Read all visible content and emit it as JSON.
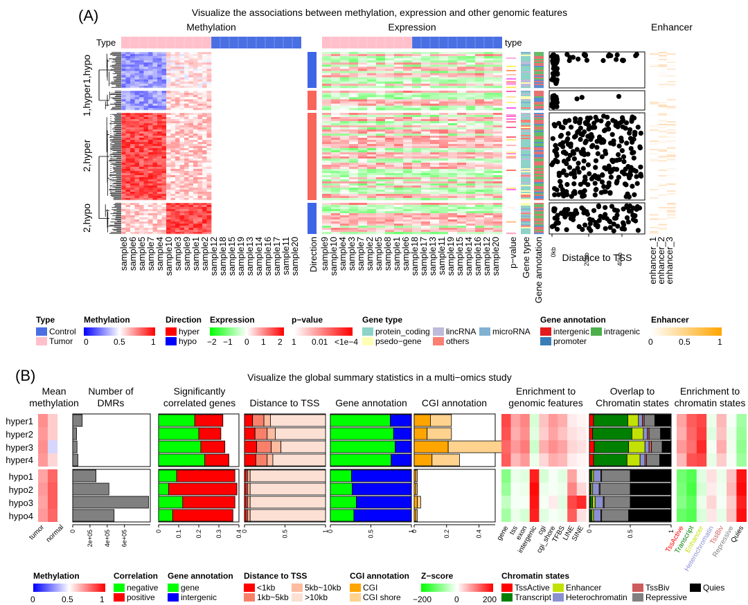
{
  "panelA": {
    "label": "(A)",
    "title": "Visualize the associations between methylation, expression and other genomic features",
    "block_titles": {
      "methylation": "Methylation",
      "expression": "Expression",
      "enhancer": "Enhancer"
    },
    "type_label": "Type",
    "type_label2": "type",
    "row_groups": [
      "1,hypo",
      "1,hyper",
      "2,hyper",
      "2,hypo"
    ],
    "methylation_samples": [
      "sample8",
      "sample6",
      "sample5",
      "sample7",
      "sample4",
      "sample10",
      "sample3",
      "sample9",
      "sample1",
      "sample2",
      "sample12",
      "sample18",
      "sample15",
      "sample19",
      "sample13",
      "sample14",
      "sample16",
      "sample17",
      "sample11",
      "sample20"
    ],
    "expression_samples": [
      "sample9",
      "sample10",
      "sample4",
      "sample3",
      "sample7",
      "sample2",
      "sample5",
      "sample8",
      "sample1",
      "sample6",
      "sample18",
      "sample17",
      "sample13",
      "sample11",
      "sample19",
      "sample15",
      "sample14",
      "sample16",
      "sample12",
      "sample20"
    ],
    "annotation_columns": {
      "direction": "Direction",
      "pvalue": "p−value",
      "gene_type": "Gene type",
      "gene_annotation": "Gene annotation"
    },
    "scatter": {
      "xlabel": "Distance to TSS",
      "ticks": [
        "0kb",
        "20kb",
        "40kb"
      ]
    },
    "enhancer_columns": [
      "enhancer_1",
      "enhancer_2",
      "enhancer_3"
    ],
    "legends": {
      "type": {
        "title": "Type",
        "items": [
          {
            "label": "Control",
            "color": "#4a6fe3"
          },
          {
            "label": "Tumor",
            "color": "#ffc0cb"
          }
        ]
      },
      "methylation": {
        "title": "Methylation",
        "ticks": [
          "0",
          "0.5",
          "1"
        ]
      },
      "direction": {
        "title": "Direction",
        "items": [
          {
            "label": "hyper",
            "color": "#ff0000"
          },
          {
            "label": "hypo",
            "color": "#0000ff"
          }
        ]
      },
      "expression": {
        "title": "Expression",
        "ticks": [
          "−2",
          "−1",
          "0",
          "1",
          "2"
        ]
      },
      "pvalue": {
        "title": "p−value",
        "ticks": [
          "1",
          "0.01",
          "<1e−4"
        ]
      },
      "gene_type": {
        "title": "Gene type",
        "items": [
          {
            "label": "protein_coding",
            "color": "#8dd3c7"
          },
          {
            "label": "lincRNA",
            "color": "#bebada"
          },
          {
            "label": "microRNA",
            "color": "#80b1d3"
          },
          {
            "label": "psedo−gene",
            "color": "#ffffb3"
          },
          {
            "label": "others",
            "color": "#fb8072"
          }
        ]
      },
      "gene_annotation": {
        "title": "Gene annotation",
        "items": [
          {
            "label": "intergenic",
            "color": "#e41a1c"
          },
          {
            "label": "intragenic",
            "color": "#4daf4a"
          },
          {
            "label": "promoter",
            "color": "#377eb8"
          }
        ]
      },
      "enhancer": {
        "title": "Enhancer",
        "ticks": [
          "0",
          "0.5",
          "1"
        ]
      }
    }
  },
  "panelB": {
    "label": "(B)",
    "title": "Visualize the global summary statistics in a multi−omics study",
    "rows": [
      "hyper1",
      "hyper2",
      "hyper3",
      "hyper4",
      "hypo1",
      "hypo2",
      "hypo3",
      "hypo4"
    ],
    "column_titles": {
      "mean_meth": [
        "Mean",
        "methylation"
      ],
      "dmrs": [
        "Number of",
        "DMRs"
      ],
      "corr": [
        "Significantly",
        "correlated genes"
      ],
      "tss": [
        "Distance to TSS"
      ],
      "gene_annot": [
        "Gene annotation"
      ],
      "cgi": [
        "CGI annotation"
      ],
      "enrich_feat": [
        "Enrichment to",
        "genomic features"
      ],
      "overlap": [
        "Overlap to",
        "Chromatin states"
      ],
      "enrich_chrom": [
        "Enrichment to",
        "chromatin states"
      ]
    },
    "mean_meth_labels": [
      "tumor",
      "normal"
    ],
    "axis_ticks": {
      "dmrs": [
        "0",
        "2e+05",
        "4e+05",
        "6e+05"
      ],
      "corr": [
        "0",
        "0.1",
        "0.2",
        "0.3",
        "0.4"
      ],
      "tss": [
        "0",
        "0.5",
        "1"
      ],
      "gene_annot": [
        "0",
        "0.5",
        "1"
      ],
      "cgi": [
        "0",
        "0.2",
        "0.4"
      ],
      "overlap": [
        "0",
        "0.5",
        "1"
      ]
    },
    "feature_labels": [
      "gene",
      "tss",
      "exon",
      "intergenic",
      "cgi",
      "cgi_shore",
      "TFBS",
      "LINE",
      "SINE"
    ],
    "state_labels": [
      {
        "label": "TssActive",
        "color": "#ff0000"
      },
      {
        "label": "Transcript",
        "color": "#008000"
      },
      {
        "label": "Enhancer",
        "color": "#c2e105"
      },
      {
        "label": "Heterochromatin",
        "color": "#8a91d0"
      },
      {
        "label": "TssBiv",
        "color": "#cd5c5c"
      },
      {
        "label": "Repressive",
        "color": "#808080"
      },
      {
        "label": "Quies",
        "color": "#000000"
      }
    ],
    "legends": {
      "methylation": {
        "title": "Methylation",
        "ticks": [
          "0",
          "0.5",
          "1"
        ]
      },
      "correlation": {
        "title": "Correlation",
        "items": [
          {
            "label": "negative",
            "color": "#00ff00"
          },
          {
            "label": "positive",
            "color": "#ff0000"
          }
        ]
      },
      "gene_annotation": {
        "title": "Gene annotation",
        "items": [
          {
            "label": "gene",
            "color": "#00ff00"
          },
          {
            "label": "intergenic",
            "color": "#0000ff"
          }
        ]
      },
      "tss": {
        "title": "Distance to TSS",
        "items": [
          {
            "label": "<1kb",
            "color": "#ff0000"
          },
          {
            "label": "5kb~10kb",
            "color": "#fdbba0"
          },
          {
            "label": "1kb~5kb",
            "color": "#f8806b"
          },
          {
            "label": ">10kb",
            "color": "#fde0d4"
          }
        ]
      },
      "cgi": {
        "title": "CGI annotation",
        "items": [
          {
            "label": "CGI",
            "color": "#ffa500"
          },
          {
            "label": "CGI shore",
            "color": "#ffd28e"
          }
        ]
      },
      "zscore": {
        "title": "Z−score",
        "ticks": [
          "−200",
          "0",
          "200"
        ]
      },
      "chromatin": {
        "title": "Chromatin states",
        "items": [
          {
            "label": "TssActive",
            "color": "#ff0000"
          },
          {
            "label": "Enhancer",
            "color": "#c2e105"
          },
          {
            "label": "TssBiv",
            "color": "#cd5c5c"
          },
          {
            "label": "Quies",
            "color": "#000000"
          },
          {
            "label": "Transcript",
            "color": "#008000"
          },
          {
            "label": "Heterochromatin",
            "color": "#8a91d0"
          },
          {
            "label": "Repressive",
            "color": "#808080"
          }
        ]
      }
    }
  },
  "chart_data": [
    {
      "type": "heatmap",
      "title": "Visualize the associations between methylation, expression and other genomic features",
      "row_groups": [
        "1,hypo",
        "1,hyper",
        "2,hyper",
        "2,hypo"
      ],
      "group_direction": [
        "hypo",
        "hyper",
        "hyper",
        "hypo"
      ],
      "group_methylation_tumor_vs_control": [
        {
          "tumor": 0.3,
          "control": 0.55
        },
        {
          "tumor": 0.3,
          "control": 0.6
        },
        {
          "tumor": 0.85,
          "control": 0.6
        },
        {
          "tumor": 0.6,
          "control": 0.85
        }
      ],
      "scatter_xlabel": "Distance to TSS",
      "scatter_xticks": [
        "0kb",
        "20kb",
        "40kb"
      ]
    },
    {
      "type": "heatmap",
      "name": "Mean methylation",
      "columns": [
        "tumor",
        "normal"
      ],
      "rows": [
        "hyper1",
        "hyper2",
        "hyper3",
        "hyper4",
        "hypo1",
        "hypo2",
        "hypo3",
        "hypo4"
      ],
      "values": [
        [
          0.72,
          0.6
        ],
        [
          0.7,
          0.6
        ],
        [
          0.72,
          0.42
        ],
        [
          0.7,
          0.58
        ],
        [
          0.68,
          0.8
        ],
        [
          0.7,
          0.82
        ],
        [
          0.68,
          0.82
        ],
        [
          0.7,
          0.8
        ]
      ],
      "range": [
        0,
        1
      ]
    },
    {
      "type": "bar",
      "name": "Number of DMRs",
      "categories": [
        "hyper1",
        "hyper2",
        "hyper3",
        "hyper4",
        "hypo1",
        "hypo2",
        "hypo3",
        "hypo4"
      ],
      "values": [
        110000,
        45000,
        50000,
        60000,
        270000,
        420000,
        880000,
        480000
      ],
      "xlim": [
        0,
        900000
      ]
    },
    {
      "type": "bar",
      "name": "Significantly correlated genes",
      "categories": [
        "hyper1",
        "hyper2",
        "hyper3",
        "hyper4",
        "hypo1",
        "hypo2",
        "hypo3",
        "hypo4"
      ],
      "series": [
        {
          "name": "negative",
          "values": [
            0.18,
            0.2,
            0.21,
            0.23,
            0.09,
            0.05,
            0.12,
            0.07
          ]
        },
        {
          "name": "positive",
          "values": [
            0.14,
            0.11,
            0.12,
            0.12,
            0.29,
            0.34,
            0.26,
            0.3
          ]
        }
      ],
      "xlim": [
        0,
        0.4
      ]
    },
    {
      "type": "bar",
      "name": "Distance to TSS",
      "categories": [
        "hyper1",
        "hyper2",
        "hyper3",
        "hyper4",
        "hypo1",
        "hypo2",
        "hypo3",
        "hypo4"
      ],
      "series": [
        {
          "name": "<1kb",
          "values": [
            0.1,
            0.13,
            0.15,
            0.14,
            0.02,
            0.02,
            0.02,
            0.02
          ]
        },
        {
          "name": "1kb~5kb",
          "values": [
            0.14,
            0.15,
            0.18,
            0.14,
            0.02,
            0.02,
            0.02,
            0.02
          ]
        },
        {
          "name": "5kb~10kb",
          "values": [
            0.08,
            0.1,
            0.12,
            0.07,
            0.03,
            0.03,
            0.03,
            0.03
          ]
        },
        {
          "name": ">10kb",
          "values": [
            0.68,
            0.62,
            0.55,
            0.65,
            0.93,
            0.93,
            0.93,
            0.93
          ]
        }
      ],
      "xlim": [
        0,
        1
      ]
    },
    {
      "type": "bar",
      "name": "Gene annotation",
      "categories": [
        "hyper1",
        "hyper2",
        "hyper3",
        "hyper4",
        "hypo1",
        "hypo2",
        "hypo3",
        "hypo4"
      ],
      "series": [
        {
          "name": "gene",
          "values": [
            0.74,
            0.78,
            0.8,
            0.75,
            0.26,
            0.27,
            0.32,
            0.29
          ]
        },
        {
          "name": "intergenic",
          "values": [
            0.26,
            0.22,
            0.2,
            0.25,
            0.74,
            0.73,
            0.68,
            0.71
          ]
        }
      ],
      "xlim": [
        0,
        1
      ]
    },
    {
      "type": "bar",
      "name": "CGI annotation",
      "categories": [
        "hyper1",
        "hyper2",
        "hyper3",
        "hyper4",
        "hypo1",
        "hypo2",
        "hypo3",
        "hypo4"
      ],
      "series": [
        {
          "name": "CGI",
          "values": [
            0.1,
            0.08,
            0.21,
            0.11,
            0.01,
            0.01,
            0.02,
            0.01
          ]
        },
        {
          "name": "CGI shore",
          "values": [
            0.13,
            0.15,
            0.36,
            0.17,
            0.01,
            0.01,
            0.02,
            0.01
          ]
        }
      ],
      "xlim": [
        0,
        0.5
      ]
    },
    {
      "type": "heatmap",
      "name": "Enrichment to genomic features",
      "columns": [
        "gene",
        "tss",
        "exon",
        "intergenic",
        "cgi",
        "cgi_shore",
        "TFBS",
        "LINE",
        "SINE"
      ],
      "rows": [
        "hyper1",
        "hyper2",
        "hyper3",
        "hyper4",
        "hypo1",
        "hypo2",
        "hypo3",
        "hypo4"
      ],
      "values": [
        [
          180,
          90,
          120,
          -40,
          60,
          100,
          80,
          20,
          10
        ],
        [
          170,
          80,
          110,
          -30,
          50,
          90,
          60,
          30,
          20
        ],
        [
          150,
          100,
          130,
          -50,
          80,
          110,
          90,
          40,
          30
        ],
        [
          160,
          70,
          100,
          -20,
          40,
          80,
          70,
          20,
          10
        ],
        [
          -120,
          -20,
          -30,
          220,
          -40,
          -10,
          -30,
          90,
          10
        ],
        [
          -100,
          -10,
          -20,
          240,
          -20,
          -10,
          -20,
          120,
          40
        ],
        [
          -60,
          -10,
          -10,
          230,
          -10,
          20,
          -30,
          180,
          210
        ],
        [
          -90,
          -20,
          -40,
          220,
          -30,
          -10,
          -20,
          160,
          30
        ]
      ],
      "range": [
        -200,
        200
      ]
    },
    {
      "type": "bar",
      "name": "Overlap to Chromatin states",
      "categories": [
        "hyper1",
        "hyper2",
        "hyper3",
        "hyper4",
        "hypo1",
        "hypo2",
        "hypo3",
        "hypo4"
      ],
      "series": [
        {
          "name": "TssActive",
          "values": [
            0.05,
            0.04,
            0.06,
            0.05,
            0.01,
            0.01,
            0.01,
            0.01
          ]
        },
        {
          "name": "Transcript",
          "values": [
            0.42,
            0.48,
            0.42,
            0.41,
            0.02,
            0.01,
            0.03,
            0.02
          ]
        },
        {
          "name": "Enhancer",
          "values": [
            0.13,
            0.14,
            0.2,
            0.16,
            0.02,
            0.02,
            0.03,
            0.02
          ]
        },
        {
          "name": "Heterochromatin",
          "values": [
            0.05,
            0.05,
            0.05,
            0.06,
            0.09,
            0.08,
            0.1,
            0.09
          ]
        },
        {
          "name": "TssBiv",
          "values": [
            0.02,
            0.02,
            0.03,
            0.02,
            0.01,
            0.01,
            0.01,
            0.01
          ]
        },
        {
          "name": "Repressive",
          "values": [
            0.13,
            0.14,
            0.13,
            0.16,
            0.35,
            0.37,
            0.32,
            0.33
          ]
        },
        {
          "name": "Quies",
          "values": [
            0.2,
            0.12,
            0.11,
            0.14,
            0.5,
            0.5,
            0.5,
            0.52
          ]
        }
      ],
      "xlim": [
        0,
        1
      ]
    },
    {
      "type": "heatmap",
      "name": "Enrichment to chromatin states",
      "columns": [
        "TssActive",
        "Transcript",
        "Enhancer",
        "Heterochromatin",
        "TssBiv",
        "Repressive",
        "Quies"
      ],
      "rows": [
        "hyper1",
        "hyper2",
        "hyper3",
        "hyper4",
        "hypo1",
        "hypo2",
        "hypo3",
        "hypo4"
      ],
      "values": [
        [
          90,
          160,
          180,
          -20,
          70,
          -10,
          -90
        ],
        [
          80,
          150,
          190,
          -30,
          60,
          -20,
          -100
        ],
        [
          100,
          140,
          210,
          -10,
          80,
          -15,
          -110
        ],
        [
          70,
          170,
          180,
          -25,
          50,
          -10,
          -95
        ],
        [
          -140,
          -170,
          -30,
          30,
          -20,
          60,
          230
        ],
        [
          -130,
          -180,
          -40,
          20,
          -15,
          70,
          240
        ],
        [
          -120,
          -160,
          -20,
          40,
          -10,
          50,
          220
        ],
        [
          -150,
          -170,
          -35,
          25,
          -25,
          60,
          235
        ]
      ],
      "range": [
        -200,
        200
      ]
    }
  ]
}
